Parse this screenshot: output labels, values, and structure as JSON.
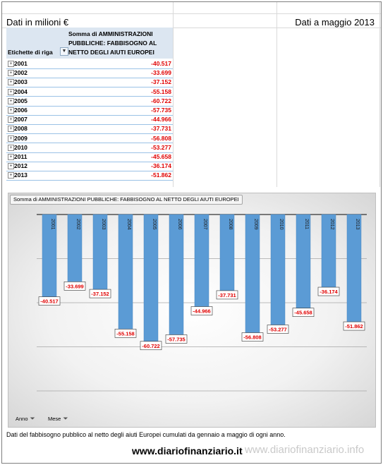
{
  "header": {
    "left": "Dati in milioni €",
    "right": "Dati a maggio 2013"
  },
  "pivot": {
    "row_label_header": "Etichette di riga",
    "filter_icon": "filter-icon",
    "value_header": "Somma di AMMINISTRAZIONI PUBBLICHE: FABBISOGNO AL NETTO DEGLI AIUTI EUROPEI",
    "rows": [
      {
        "year": "2001",
        "value": "-40.517"
      },
      {
        "year": "2002",
        "value": "-33.699"
      },
      {
        "year": "2003",
        "value": "-37.152"
      },
      {
        "year": "2004",
        "value": "-55.158"
      },
      {
        "year": "2005",
        "value": "-60.722"
      },
      {
        "year": "2006",
        "value": "-57.735"
      },
      {
        "year": "2007",
        "value": "-44.966"
      },
      {
        "year": "2008",
        "value": "-37.731"
      },
      {
        "year": "2009",
        "value": "-56.808"
      },
      {
        "year": "2010",
        "value": "-53.277"
      },
      {
        "year": "2011",
        "value": "-45.658"
      },
      {
        "year": "2012",
        "value": "-36.174"
      },
      {
        "year": "2013",
        "value": "-51.862"
      }
    ]
  },
  "chart": {
    "field_button": "Somma di AMMINISTRAZIONI PUBBLICHE: FABBISOGNO AL NETTO DEGLI AIUTI EUROPEI",
    "axis_buttons": [
      "Anno",
      "Mese"
    ],
    "bar_color": "#5b9bd5",
    "label_color": "#e00000"
  },
  "chart_data": {
    "type": "bar",
    "categories": [
      "2001",
      "2002",
      "2003",
      "2004",
      "2005",
      "2006",
      "2007",
      "2008",
      "2009",
      "2010",
      "2011",
      "2012",
      "2013"
    ],
    "values": [
      -40.517,
      -33.699,
      -37.152,
      -55.158,
      -60.722,
      -57.735,
      -44.966,
      -37.731,
      -56.808,
      -53.277,
      -45.658,
      -36.174,
      -51.862
    ],
    "data_labels": [
      "-40.517",
      "-33.699",
      "-37.152",
      "-55.158",
      "-60.722",
      "-57.735",
      "-44.966",
      "-37.731",
      "-56.808",
      "-53.277",
      "-45.658",
      "-36.174",
      "-51.862"
    ],
    "ylim": [
      -80,
      0
    ],
    "grid": true
  },
  "footer": {
    "caption": "Dati del fabbisogno pubblico al netto degli aiuti Europei cumulati da gennaio a maggio di ogni anno.",
    "brand": "www.diariofinanziario.it",
    "watermark": "www.diariofinanziario.info"
  }
}
